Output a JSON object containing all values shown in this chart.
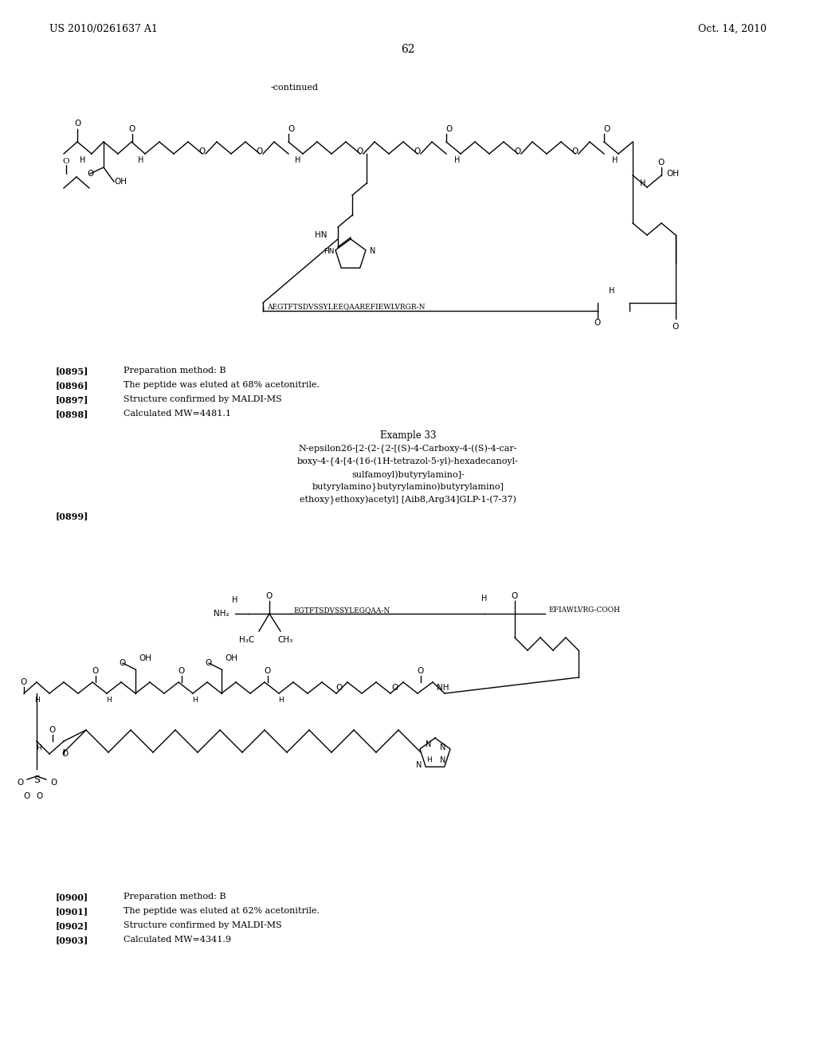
{
  "background_color": "#ffffff",
  "header_left": "US 2010/0261637 A1",
  "header_right": "Oct. 14, 2010",
  "page_number": "62",
  "continued_text": "-continued",
  "text_blocks1": [
    {
      "tag": "[0895]",
      "text": "Preparation method: B"
    },
    {
      "tag": "[0896]",
      "text": "The peptide was eluted at 68% acetonitrile."
    },
    {
      "tag": "[0897]",
      "text": "Structure confirmed by MALDI-MS"
    },
    {
      "tag": "[0898]",
      "text": "Calculated MW=4481.1"
    }
  ],
  "example33_title": "Example 33",
  "example33_lines": [
    "N-epsilon26-[2-(2-{2-[(S)-4-Carboxy-4-((S)-4-car-",
    "boxy-4-{4-[4-(16-(1H-tetrazol-5-yl)-hexadecanoyl-",
    "sulfamoyl)butyrylamino]-",
    "butyrylamino}butyrylamino)butyrylamino]",
    "ethoxy}ethoxy)acetyl] [Aib8,Arg34]GLP-1-(7-37)"
  ],
  "tag_0899": "[0899]",
  "text_blocks2": [
    {
      "tag": "[0900]",
      "text": "Preparation method: B"
    },
    {
      "tag": "[0901]",
      "text": "The peptide was eluted at 62% acetonitrile."
    },
    {
      "tag": "[0902]",
      "text": "Structure confirmed by MALDI-MS"
    },
    {
      "tag": "[0903]",
      "text": "Calculated MW=4341.9"
    }
  ]
}
